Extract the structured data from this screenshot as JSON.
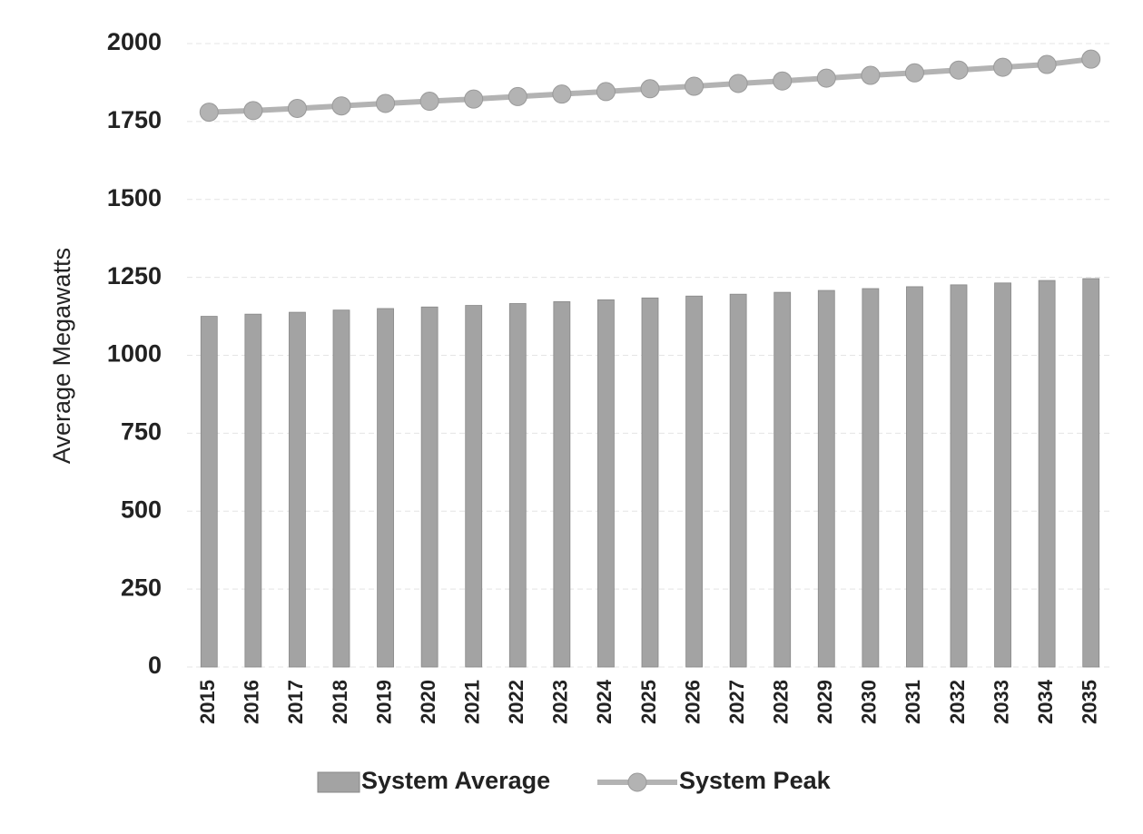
{
  "chart_data": {
    "type": "bar",
    "y_label": "Average Megawatts",
    "categories": [
      "2015",
      "2016",
      "2017",
      "2018",
      "2019",
      "2020",
      "2021",
      "2022",
      "2023",
      "2024",
      "2025",
      "2026",
      "2027",
      "2028",
      "2029",
      "2030",
      "2031",
      "2032",
      "2033",
      "2034",
      "2035"
    ],
    "series": [
      {
        "name": "System Average",
        "type": "bar",
        "color": "#a3a3a3",
        "values": [
          1125,
          1132,
          1138,
          1145,
          1150,
          1155,
          1160,
          1166,
          1172,
          1178,
          1184,
          1190,
          1196,
          1202,
          1208,
          1214,
          1220,
          1226,
          1232,
          1240,
          1246
        ]
      },
      {
        "name": "System Peak",
        "type": "line",
        "color": "#b3b3b3",
        "values": [
          1780,
          1785,
          1792,
          1800,
          1808,
          1815,
          1822,
          1830,
          1838,
          1846,
          1855,
          1863,
          1872,
          1880,
          1889,
          1898,
          1906,
          1915,
          1924,
          1933,
          1950
        ]
      }
    ],
    "ylim": [
      0,
      2000
    ],
    "yticks": [
      0,
      250,
      500,
      750,
      1000,
      1250,
      1500,
      1750,
      2000
    ],
    "grid": true,
    "legend": "bottom"
  }
}
